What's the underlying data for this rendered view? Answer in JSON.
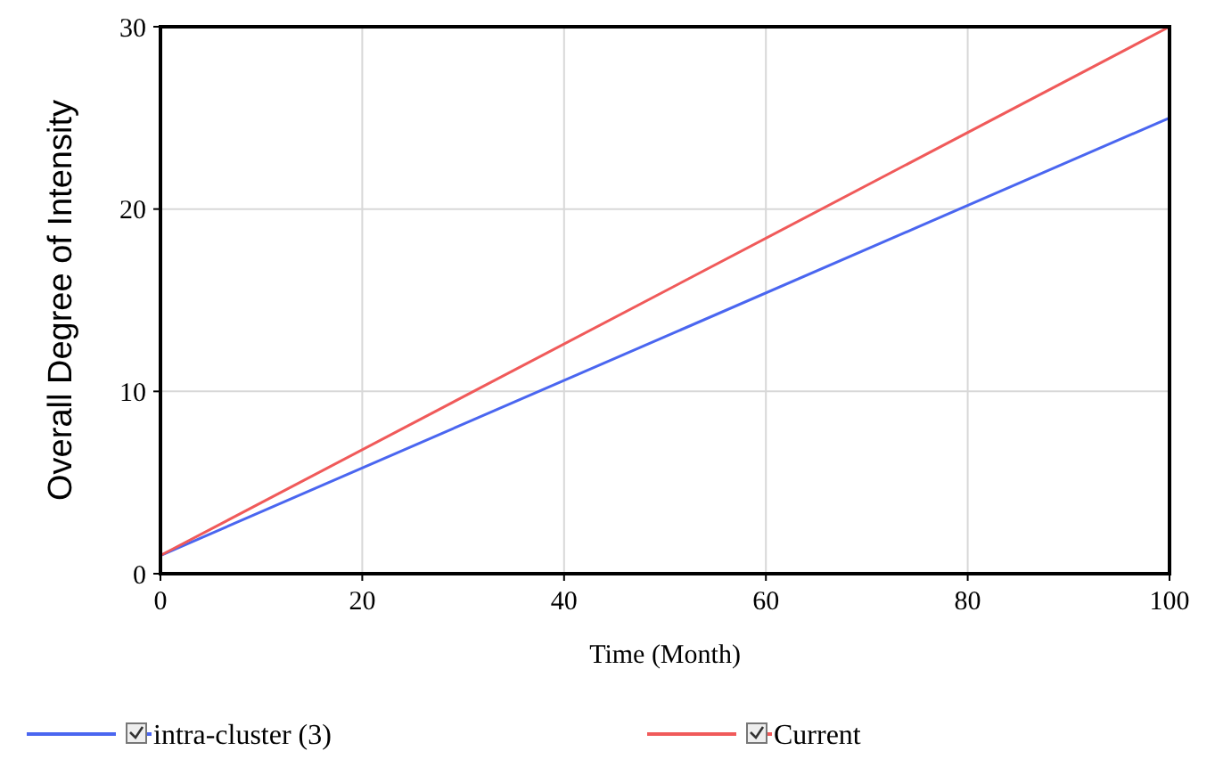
{
  "chart_data": {
    "type": "line",
    "xlabel": "Time (Month)",
    "ylabel": "Overall Degree of Intensity",
    "x": [
      0,
      100
    ],
    "series": [
      {
        "name": "intra-cluster (3)",
        "color": "#4a66f0",
        "values": [
          1,
          25
        ]
      },
      {
        "name": "Current",
        "color": "#f05a5a",
        "values": [
          1,
          30
        ]
      }
    ],
    "xlim": [
      0,
      100
    ],
    "ylim": [
      0,
      30
    ],
    "xticks": [
      0,
      20,
      40,
      60,
      80,
      100
    ],
    "yticks": [
      0,
      10,
      20,
      30
    ],
    "grid": true,
    "legend": "bottom",
    "marker": "none",
    "line_style": "solid"
  }
}
